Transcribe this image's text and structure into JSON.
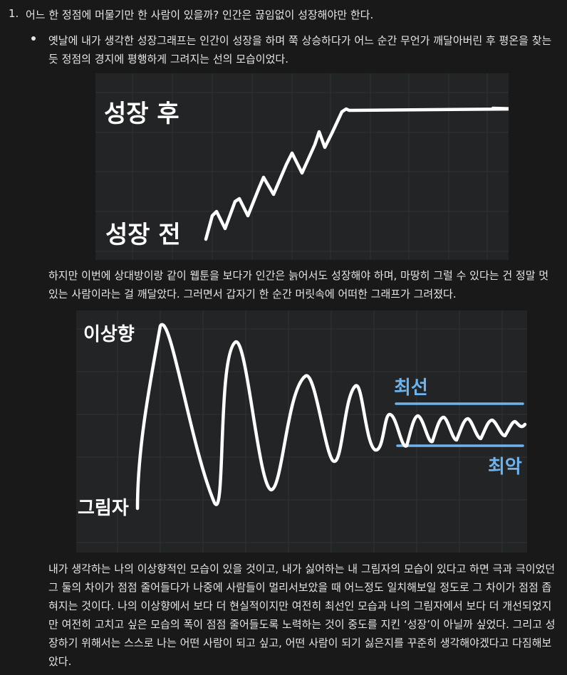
{
  "list": {
    "number": "1.",
    "heading": "어느 한 정점에 머물기만 한 사람이 있을까? 인간은 끊임없이 성장해야만 한다."
  },
  "bullet_text": "옛날에 내가 생각한 성장그래프는 인간이 성장을 하며 쭉 상승하다가 어느 순간 무언가 깨달아버린 후 평온을 찾는 듯 정점의 경지에 평행하게 그려지는 선의 모습이었다.",
  "figure1": {
    "label_top": "성장 후",
    "label_bottom": "성장 전"
  },
  "paragraph2": "하지만 이번에 상대방이랑 같이 웹툰을 보다가 인간은 늙어서도 성장해야 하며, 마땅히 그럴 수 있다는 건 정말 멋있는 사람이라는 걸 깨달았다. 그러면서 갑자기 한 순간 머릿속에 어떠한 그래프가 그려졌다.",
  "figure2": {
    "label_ideal": "이상향",
    "label_shadow": "그림자",
    "label_best": "최선",
    "label_worst": "최악",
    "band_color": "#6fb3ec"
  },
  "paragraph3": "내가 생각하는 나의 이상향적인 모습이 있을 것이고, 내가 싫어하는 내 그림자의 모습이 있다고 하면 극과 극이었던 그 둘의 차이가 점점 줄어들다가 나중에 사람들이 멀리서보았을 때 어느정도 일치해보일 정도로 그 차이가 점점 좁혀지는 것이다. 나의 이상향에서 보다 더 현실적이지만 여전히 최선인 모습과 나의 그림자에서 보다 더 개선되었지만 여전히 고치고 싶은 모습의 폭이 점점 줄어들도록 노력하는 것이 중도를 지킨 ‘성장’이 아닐까 싶었다. 그리고 성장하기 위해서는 스스로 나는 어떤 사람이 되고 싶고, 어떤 사람이 되기 싫은지를 꾸준히 생각해야겠다고 다짐해보았다."
}
